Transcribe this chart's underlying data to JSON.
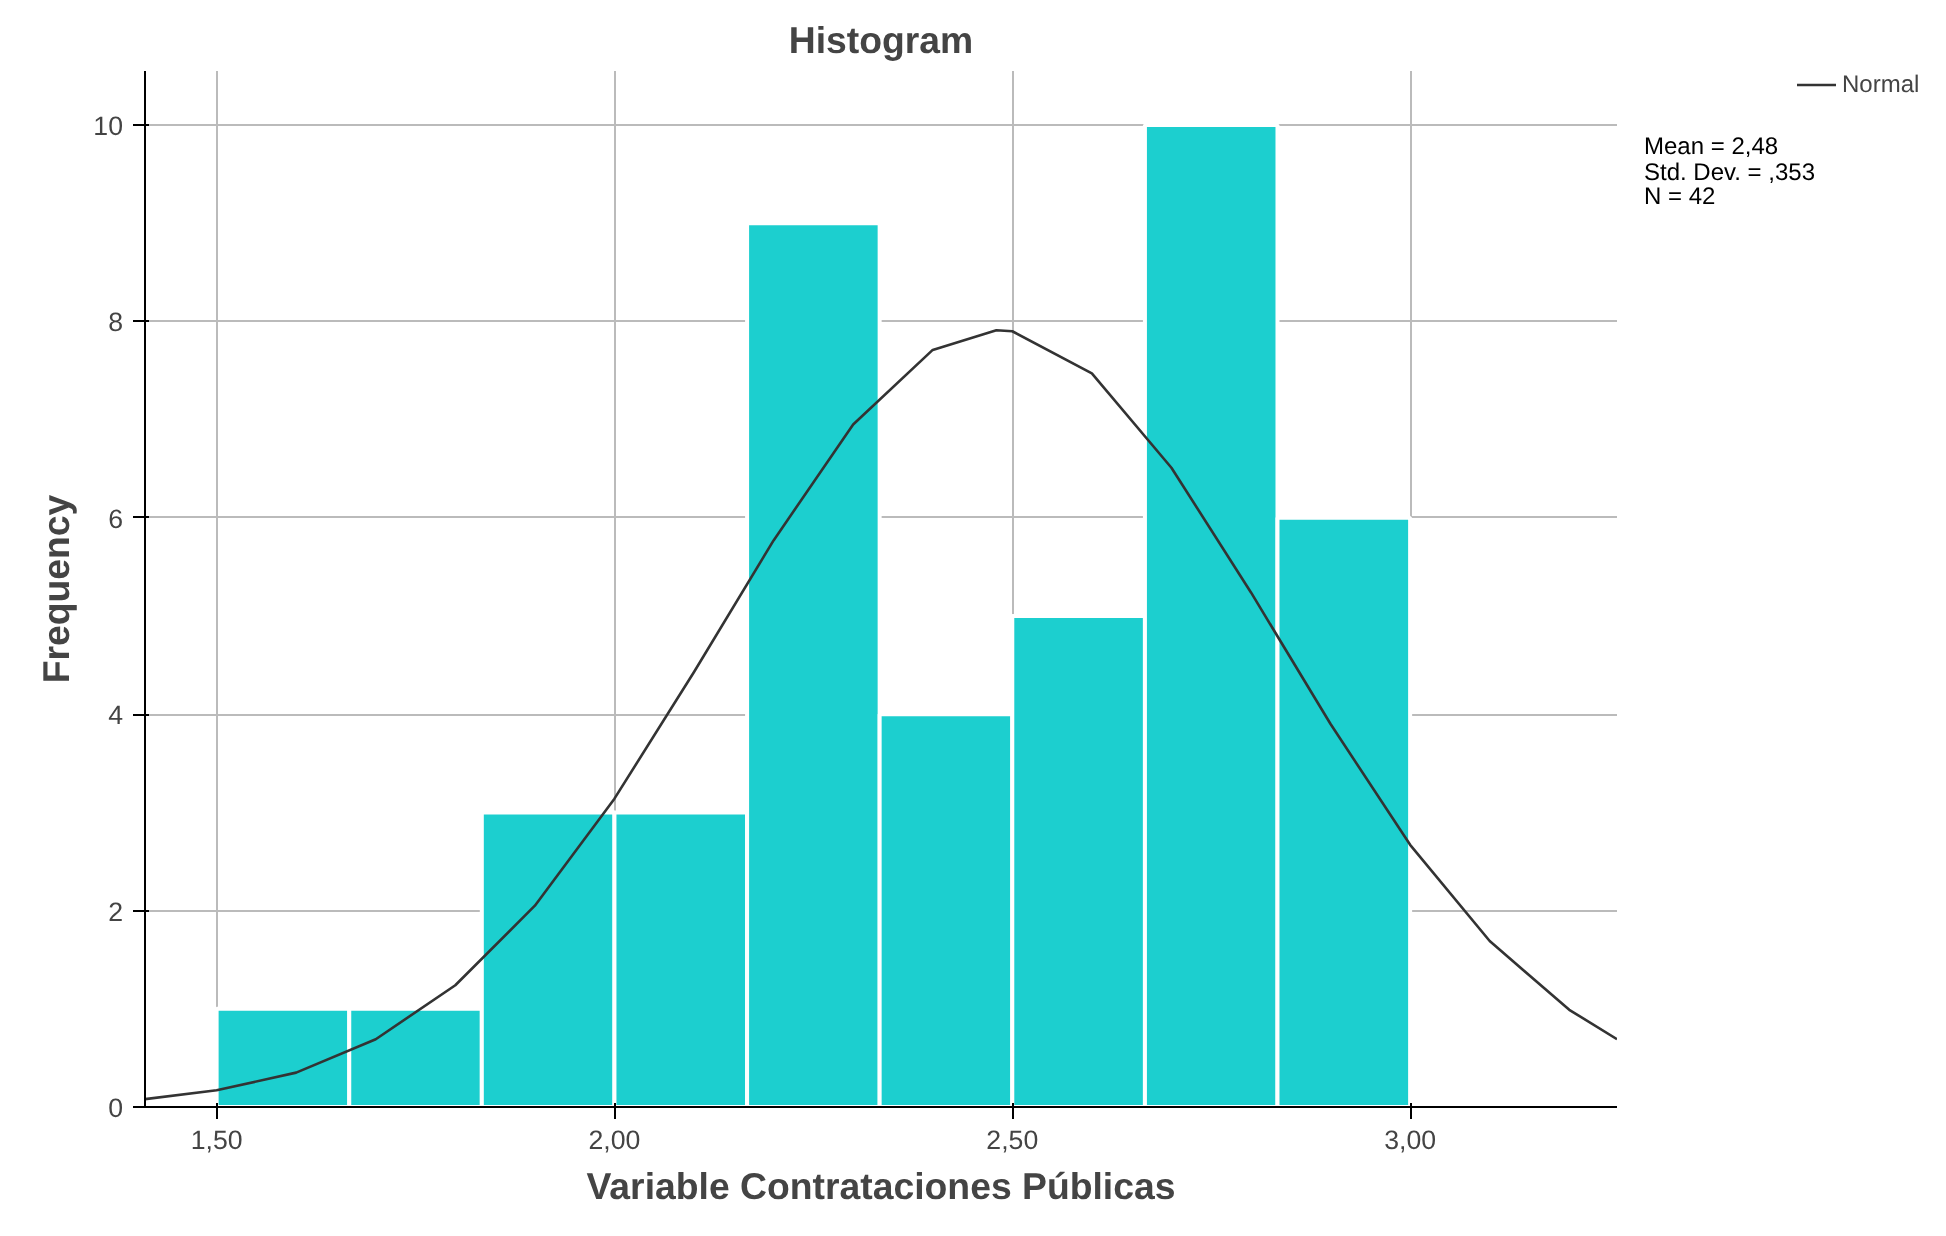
{
  "chart_data": {
    "type": "histogram",
    "title": "Histogram",
    "xlabel": "Variable Contrataciones Públicas",
    "ylabel": "Frequency",
    "bins": [
      1.5,
      1.6667,
      1.8333,
      2.0,
      2.1667,
      2.3333,
      2.5,
      2.6667,
      2.8333,
      3.0
    ],
    "series": [
      {
        "type": "histogram",
        "color": "#1ccfcf",
        "values": [
          1,
          1,
          3,
          3,
          9,
          4,
          5,
          10,
          6
        ]
      },
      {
        "type": "line",
        "name": "Normal",
        "color": "#333333",
        "x": [
          1.41,
          1.5,
          1.6,
          1.7,
          1.8,
          1.9,
          2.0,
          2.1,
          2.2,
          2.3,
          2.4,
          2.48,
          2.5,
          2.6,
          2.7,
          2.8,
          2.9,
          3.0,
          3.1,
          3.2,
          3.26
        ],
        "values": [
          0.08,
          0.17,
          0.35,
          0.69,
          1.24,
          2.05,
          3.14,
          4.43,
          5.77,
          6.95,
          7.71,
          7.91,
          7.9,
          7.47,
          6.51,
          5.24,
          3.9,
          2.67,
          1.69,
          0.99,
          0.69
        ]
      }
    ],
    "xlim": [
      1.41,
      3.26
    ],
    "ylim": [
      0,
      10.55
    ],
    "xticks": [
      {
        "value": 1.5,
        "label": "1,50"
      },
      {
        "value": 2.0,
        "label": "2,00"
      },
      {
        "value": 2.5,
        "label": "2,50"
      },
      {
        "value": 3.0,
        "label": "3,00"
      }
    ],
    "yticks": [
      0,
      2,
      4,
      6,
      8,
      10
    ],
    "grid": true,
    "legend": "top right",
    "annotations": [
      "Mean = 2,48",
      "Std. Dev. = ,353",
      "N = 42"
    ]
  }
}
